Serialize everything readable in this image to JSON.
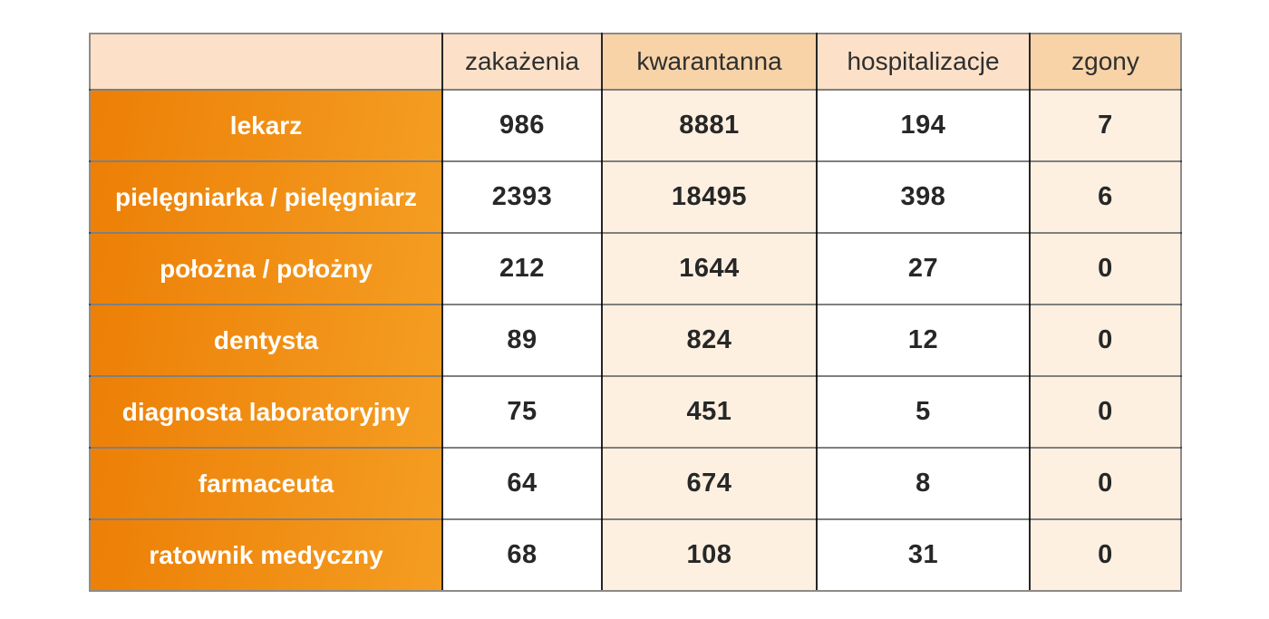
{
  "chart_data": {
    "type": "table",
    "columns": [
      "",
      "zakażenia",
      "kwarantanna",
      "hospitalizacje",
      "zgony"
    ],
    "rows": [
      {
        "label": "lekarz",
        "values": [
          "986",
          "8881",
          "194",
          "7"
        ]
      },
      {
        "label": "pielęgniarka / pielęgniarz",
        "values": [
          "2393",
          "18495",
          "398",
          "6"
        ]
      },
      {
        "label": "położna / położny",
        "values": [
          "212",
          "1644",
          "27",
          "0"
        ]
      },
      {
        "label": "dentysta",
        "values": [
          "89",
          "824",
          "12",
          "0"
        ]
      },
      {
        "label": "diagnosta laboratoryjny",
        "values": [
          "75",
          "451",
          "5",
          "0"
        ]
      },
      {
        "label": "farmaceuta",
        "values": [
          "64",
          "674",
          "8",
          "0"
        ]
      },
      {
        "label": "ratownik medyczny",
        "values": [
          "68",
          "108",
          "31",
          "0"
        ]
      }
    ]
  },
  "style": {
    "page_background": "#ffffff",
    "header_cell_light": "#fce1c8",
    "header_cell_tint": "#f8d3a7",
    "data_cell_white": "#ffffff",
    "data_cell_tint": "#fdf0e1",
    "label_gradient_start": "#ed7f06",
    "label_gradient_end": "#f49d22",
    "border_vertical": "#262626",
    "border_horizontal": "rgba(0,0,0,0.5)",
    "border_outer": "#8f8b86",
    "header_text": "#2f2f2f",
    "value_text": "#272727",
    "label_text": "#fffdf9",
    "tinted_columns": [
      2,
      4
    ]
  }
}
